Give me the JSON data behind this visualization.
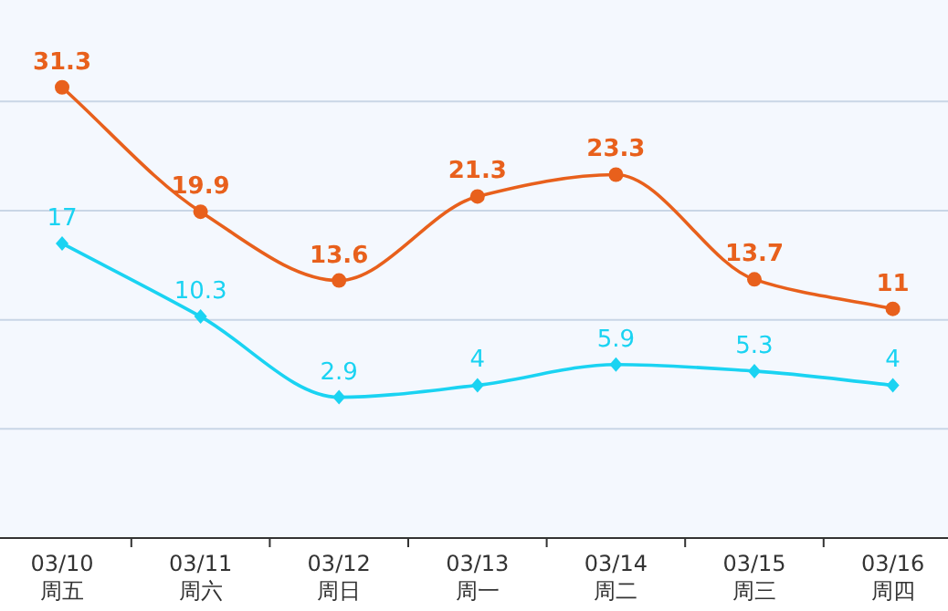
{
  "chart_data": {
    "type": "line",
    "categories": [
      "03/10\n周五",
      "03/11\n周六",
      "03/12\n周日",
      "03/13\n周一",
      "03/14\n周二",
      "03/15\n周三",
      "03/16\n周四"
    ],
    "series": [
      {
        "color": "#e8601c",
        "values": [
          31.3,
          19.9,
          13.6,
          21.3,
          23.3,
          13.7,
          11
        ],
        "marker": "circle"
      },
      {
        "color": "#1ad3f2",
        "values": [
          17,
          10.3,
          2.9,
          4,
          5.9,
          5.3,
          4
        ],
        "marker": "diamond"
      }
    ],
    "ylim": [
      -10,
      39.3
    ],
    "yticks": [
      {
        "value": 0,
        "label": null
      },
      {
        "value": 10,
        "label": null
      },
      {
        "value": 20,
        "label": null
      },
      {
        "value": 30,
        "label": null
      }
    ],
    "grid": "y",
    "data_labels": true
  }
}
